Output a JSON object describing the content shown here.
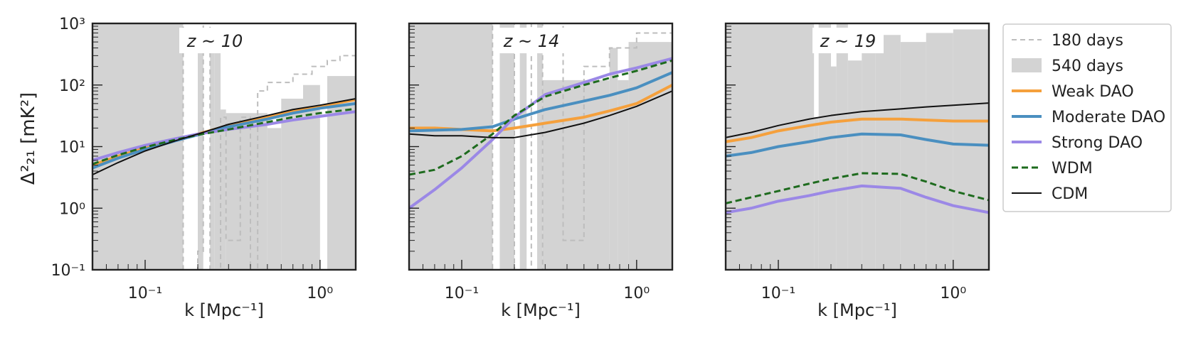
{
  "colors": {
    "weak": "#f5a03c",
    "moderate": "#4a8fc0",
    "strong": "#9b88e6",
    "wdm": "#1e6b1e",
    "cdm": "#111111",
    "days180": "#bdbdbd",
    "days540": "#d3d3d3"
  },
  "legend": {
    "position": "right",
    "items": [
      {
        "key": "days180",
        "label": "180 days",
        "style": "dashed-gray"
      },
      {
        "key": "days540",
        "label": "540 days",
        "style": "filled-gray"
      },
      {
        "key": "weak",
        "label": "Weak DAO",
        "style": "line"
      },
      {
        "key": "moderate",
        "label": "Moderate DAO",
        "style": "line"
      },
      {
        "key": "strong",
        "label": "Strong DAO",
        "style": "line"
      },
      {
        "key": "wdm",
        "label": "WDM",
        "style": "dashed"
      },
      {
        "key": "cdm",
        "label": "CDM",
        "style": "thin"
      }
    ]
  },
  "chart_data": [
    {
      "type": "line",
      "annotation": "z ~ 10",
      "xlabel": "k [Mpc⁻¹]",
      "ylabel": "Δ²₂₁ [mK²]",
      "xscale": "log",
      "yscale": "log",
      "xlim": [
        0.05,
        1.6
      ],
      "ylim": [
        0.1,
        1000
      ],
      "x_ticks": [
        "10⁻¹",
        "10⁰"
      ],
      "y_ticks": [
        "10⁻¹",
        "10⁰",
        "10¹",
        "10²",
        "10³"
      ],
      "x": [
        0.05,
        0.07,
        0.1,
        0.15,
        0.2,
        0.3,
        0.5,
        0.7,
        1.0,
        1.6
      ],
      "series": [
        {
          "name": "Weak DAO",
          "key": "weak",
          "values": [
            5.0,
            7.0,
            9.5,
            13,
            16,
            22,
            30,
            38,
            45,
            58
          ]
        },
        {
          "name": "Moderate DAO",
          "key": "moderate",
          "values": [
            4.5,
            6.5,
            9.0,
            12.5,
            15.5,
            21,
            28,
            35,
            42,
            50
          ]
        },
        {
          "name": "Strong DAO",
          "key": "strong",
          "values": [
            6.0,
            8.0,
            10.5,
            13.5,
            16,
            19,
            23,
            27,
            31,
            37
          ]
        },
        {
          "name": "WDM",
          "key": "wdm",
          "values": [
            5.2,
            7.3,
            9.8,
            13,
            15.5,
            19,
            25,
            30,
            35,
            41
          ]
        },
        {
          "name": "CDM",
          "key": "cdm",
          "values": [
            3.5,
            5.5,
            8.5,
            12.5,
            16,
            23,
            32,
            40,
            47,
            60
          ]
        }
      ],
      "sensitivity_540_days": {
        "bins": [
          [
            0.05,
            0.165,
            1000
          ],
          [
            0.165,
            0.175,
            0.1
          ],
          [
            0.175,
            0.2,
            0.1
          ],
          [
            0.2,
            0.215,
            400
          ],
          [
            0.215,
            0.235,
            0.1
          ],
          [
            0.235,
            0.25,
            400
          ],
          [
            0.25,
            0.27,
            400
          ],
          [
            0.27,
            0.29,
            40
          ],
          [
            0.29,
            0.5,
            35
          ],
          [
            0.5,
            0.6,
            20
          ],
          [
            0.6,
            0.8,
            60
          ],
          [
            0.8,
            1.0,
            100
          ],
          [
            1.0,
            1.1,
            0.1
          ],
          [
            1.1,
            1.6,
            140
          ]
        ]
      },
      "sensitivity_180_days": {
        "bins": [
          [
            0.05,
            0.165,
            1000
          ],
          [
            0.165,
            0.2,
            0.1
          ],
          [
            0.2,
            0.215,
            0.2
          ],
          [
            0.215,
            0.235,
            1000
          ],
          [
            0.235,
            0.27,
            0.1
          ],
          [
            0.27,
            0.29,
            30
          ],
          [
            0.29,
            0.35,
            0.3
          ],
          [
            0.35,
            0.4,
            30
          ],
          [
            0.4,
            0.44,
            0.1
          ],
          [
            0.44,
            0.5,
            80
          ],
          [
            0.5,
            0.7,
            110
          ],
          [
            0.7,
            0.9,
            150
          ],
          [
            0.9,
            1.1,
            200
          ],
          [
            1.1,
            1.3,
            250
          ],
          [
            1.3,
            1.6,
            300
          ]
        ]
      }
    },
    {
      "type": "line",
      "annotation": "z ~ 14",
      "xlabel": "k [Mpc⁻¹]",
      "xscale": "log",
      "yscale": "log",
      "xlim": [
        0.05,
        1.6
      ],
      "ylim": [
        0.1,
        1000
      ],
      "x_ticks": [
        "10⁻¹",
        "10⁰"
      ],
      "x": [
        0.05,
        0.07,
        0.1,
        0.15,
        0.2,
        0.3,
        0.5,
        0.7,
        1.0,
        1.6
      ],
      "series": [
        {
          "name": "Weak DAO",
          "key": "weak",
          "values": [
            20,
            20,
            19,
            18,
            20,
            24,
            30,
            38,
            50,
            100
          ]
        },
        {
          "name": "Moderate DAO",
          "key": "moderate",
          "values": [
            18,
            18.5,
            19,
            21,
            28,
            40,
            55,
            68,
            90,
            160
          ]
        },
        {
          "name": "Strong DAO",
          "key": "strong",
          "values": [
            1.0,
            2.0,
            4.5,
            13,
            30,
            70,
            110,
            150,
            190,
            270
          ]
        },
        {
          "name": "WDM",
          "key": "wdm",
          "values": [
            3.5,
            4.2,
            7,
            16,
            32,
            65,
            100,
            130,
            170,
            250
          ]
        },
        {
          "name": "CDM",
          "key": "cdm",
          "values": [
            16,
            15,
            15,
            14,
            14,
            17,
            24,
            32,
            45,
            80
          ]
        }
      ],
      "sensitivity_540_days": {
        "bins": [
          [
            0.05,
            0.15,
            1000
          ],
          [
            0.15,
            0.165,
            0.1
          ],
          [
            0.165,
            0.2,
            1000
          ],
          [
            0.2,
            0.215,
            0.1
          ],
          [
            0.215,
            0.235,
            1000
          ],
          [
            0.235,
            0.27,
            0.1
          ],
          [
            0.27,
            0.29,
            1000
          ],
          [
            0.29,
            0.7,
            120
          ],
          [
            0.7,
            0.78,
            400
          ],
          [
            0.78,
            0.9,
            120
          ],
          [
            0.9,
            1.6,
            500
          ]
        ]
      },
      "sensitivity_180_days": {
        "bins": [
          [
            0.05,
            0.15,
            1000
          ],
          [
            0.15,
            0.2,
            0.1
          ],
          [
            0.2,
            0.25,
            1000
          ],
          [
            0.25,
            0.29,
            0.1
          ],
          [
            0.29,
            0.38,
            1000
          ],
          [
            0.38,
            0.5,
            0.3
          ],
          [
            0.5,
            0.7,
            200
          ],
          [
            0.7,
            1.0,
            400
          ],
          [
            1.0,
            1.6,
            700
          ]
        ]
      }
    },
    {
      "type": "line",
      "annotation": "z ~ 19",
      "xlabel": "k [Mpc⁻¹]",
      "xscale": "log",
      "yscale": "log",
      "xlim": [
        0.05,
        1.6
      ],
      "ylim": [
        0.1,
        1000
      ],
      "x_ticks": [
        "10⁻¹",
        "10⁰"
      ],
      "x": [
        0.05,
        0.07,
        0.1,
        0.15,
        0.2,
        0.3,
        0.5,
        0.7,
        1.0,
        1.6
      ],
      "series": [
        {
          "name": "Weak DAO",
          "key": "weak",
          "values": [
            12,
            14,
            18,
            22,
            25,
            28,
            28,
            27,
            26,
            26
          ]
        },
        {
          "name": "Moderate DAO",
          "key": "moderate",
          "values": [
            7,
            8,
            10,
            12,
            14,
            16,
            15.5,
            13,
            11,
            10.5
          ]
        },
        {
          "name": "Strong DAO",
          "key": "strong",
          "values": [
            0.85,
            1.0,
            1.3,
            1.6,
            1.9,
            2.3,
            2.1,
            1.5,
            1.1,
            0.85
          ]
        },
        {
          "name": "WDM",
          "key": "wdm",
          "values": [
            1.2,
            1.5,
            1.9,
            2.5,
            3.0,
            3.7,
            3.6,
            2.7,
            1.9,
            1.35
          ]
        },
        {
          "name": "CDM",
          "key": "cdm",
          "values": [
            14,
            17,
            22,
            28,
            32,
            37,
            41,
            44,
            47,
            51
          ]
        }
      ],
      "sensitivity_540_days": {
        "bins": [
          [
            0.05,
            0.16,
            1000
          ],
          [
            0.16,
            0.17,
            30
          ],
          [
            0.17,
            0.2,
            1000
          ],
          [
            0.2,
            0.215,
            200
          ],
          [
            0.215,
            0.25,
            1000
          ],
          [
            0.25,
            0.3,
            250
          ],
          [
            0.3,
            0.36,
            600
          ],
          [
            0.36,
            0.5,
            650
          ],
          [
            0.5,
            0.7,
            500
          ],
          [
            0.7,
            1.0,
            700
          ],
          [
            1.0,
            1.6,
            800
          ]
        ]
      },
      "sensitivity_180_days": {
        "bins": [
          [
            0.05,
            1.6,
            1000
          ]
        ]
      }
    }
  ]
}
